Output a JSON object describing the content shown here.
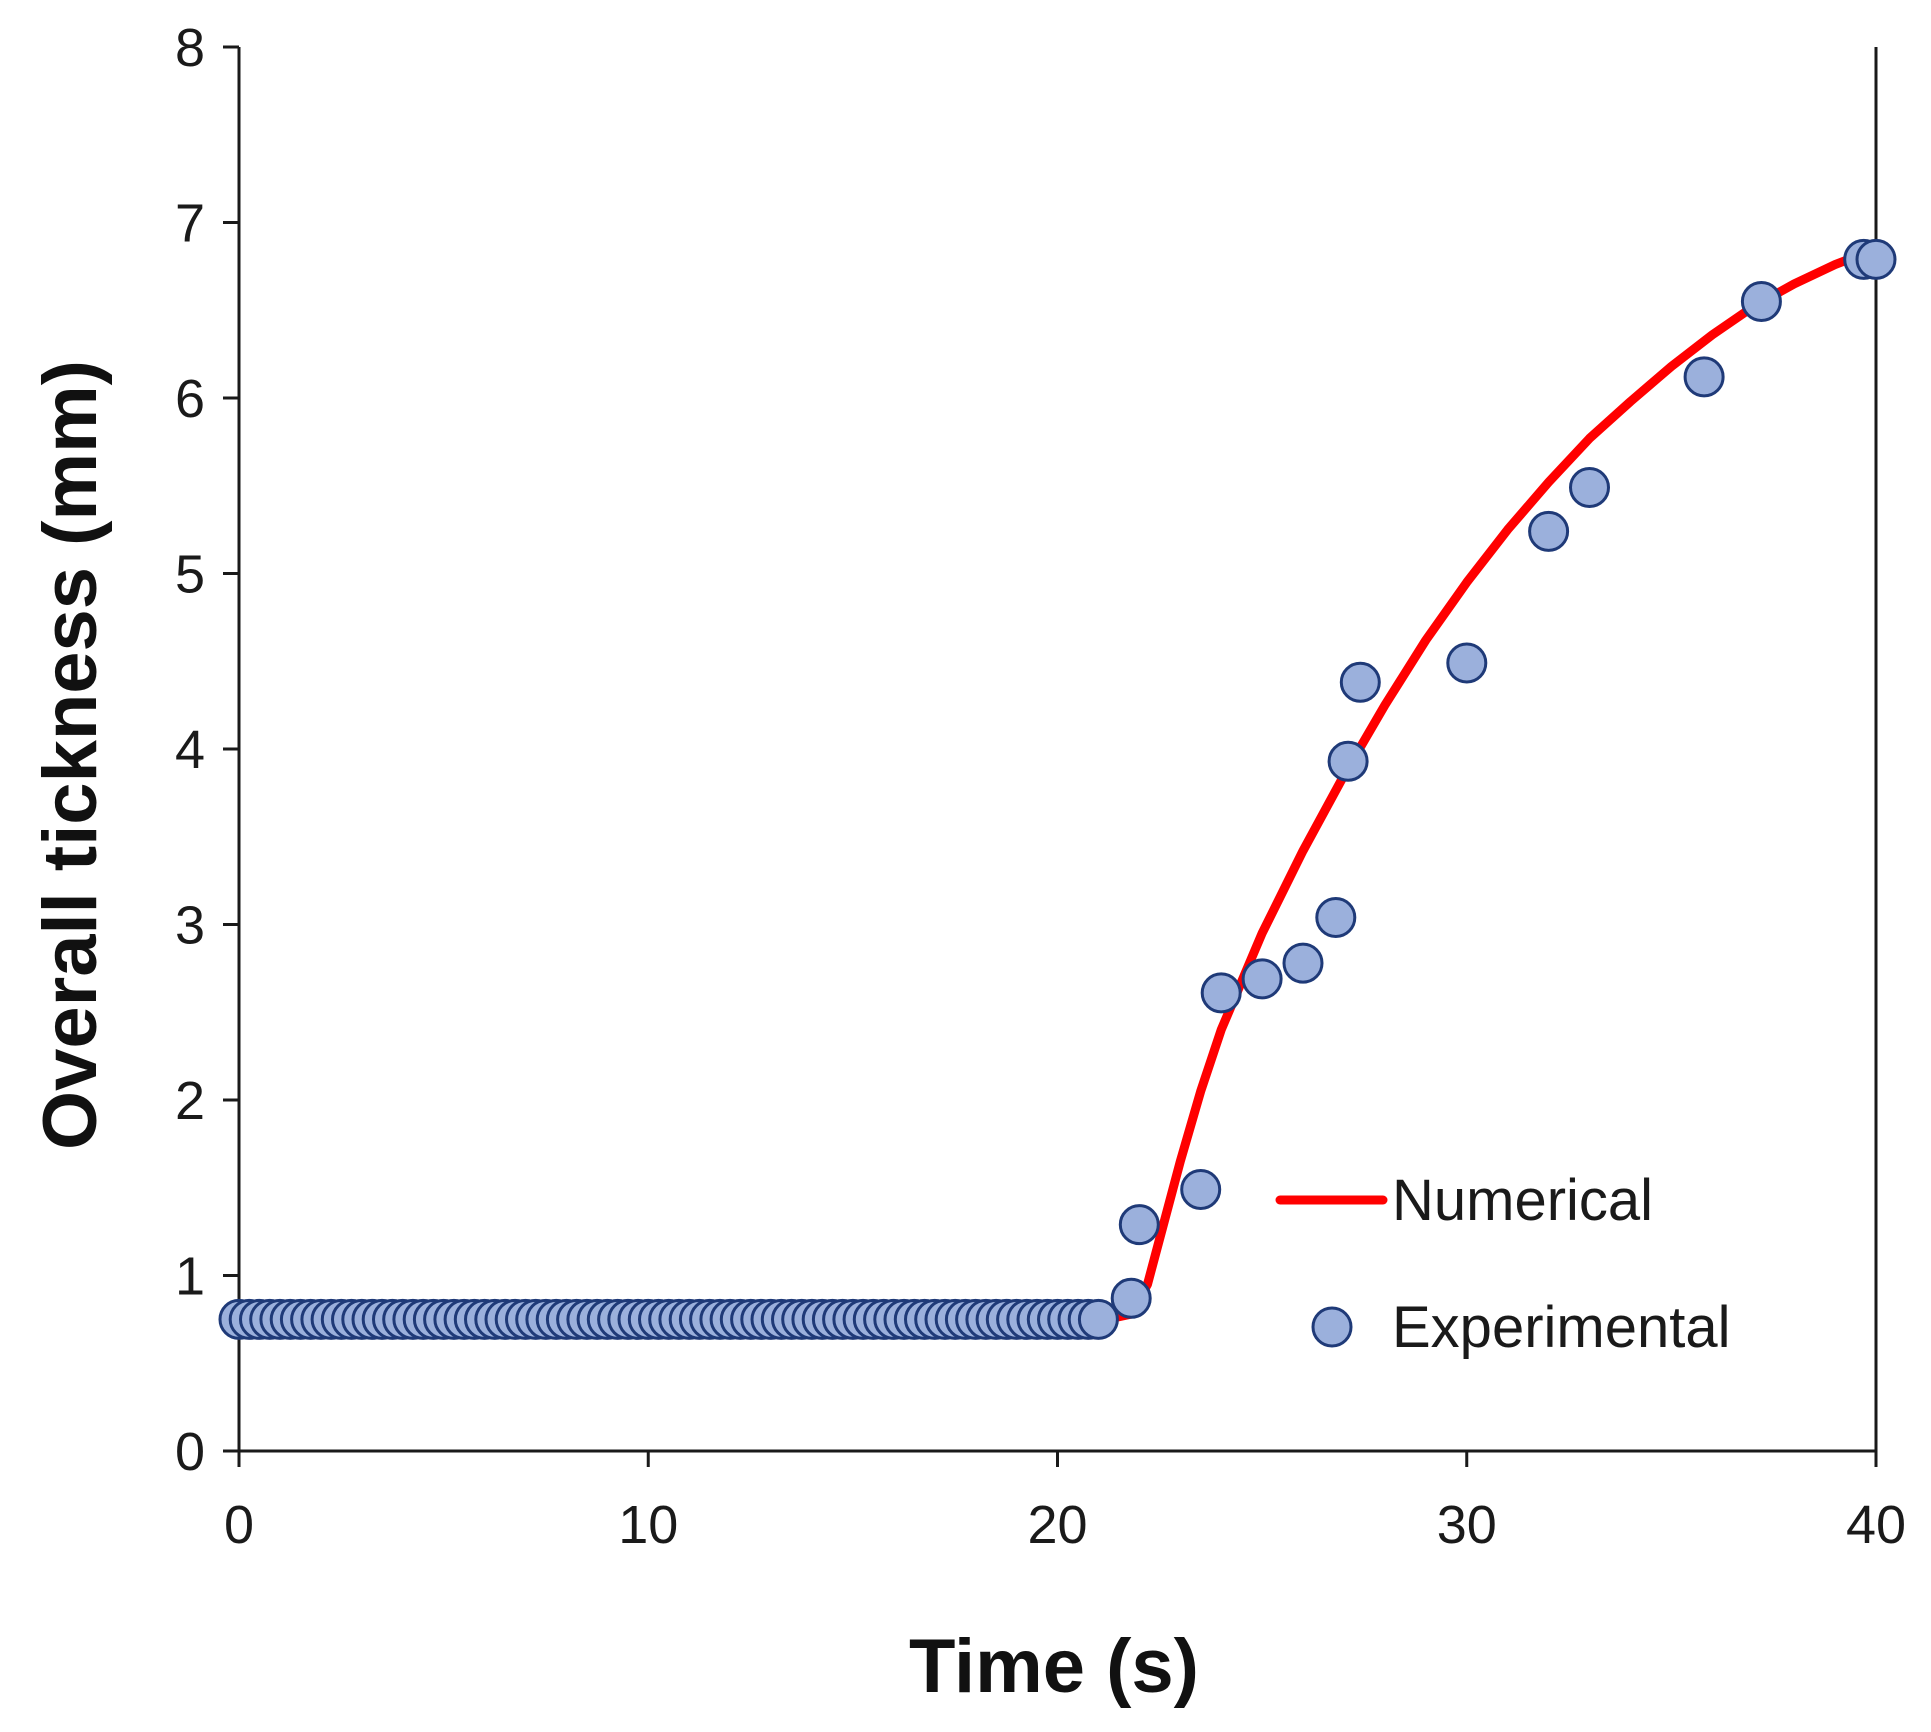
{
  "chart_data": {
    "type": "scatter",
    "title": "",
    "xlabel": "Time (s)",
    "ylabel": "Overall tickness (mm)",
    "xlim": [
      0,
      40
    ],
    "ylim": [
      0,
      8
    ],
    "xticks": [
      0,
      10,
      20,
      30,
      40
    ],
    "yticks": [
      0,
      1,
      2,
      3,
      4,
      5,
      6,
      7,
      8
    ],
    "grid": false,
    "legend_position": "bottom-right",
    "colors": {
      "numerical_line": "#ff0000",
      "marker_fill": "#9bb0dc",
      "marker_edge": "#1f3a78",
      "axis": "#1a1a1a"
    },
    "series": [
      {
        "name": "Numerical",
        "kind": "line",
        "x": [
          21.2,
          21.8,
          22.2,
          22.6,
          23.0,
          23.5,
          24.0,
          25.0,
          26.0,
          27.0,
          28.0,
          29.0,
          30.0,
          31.0,
          32.0,
          33.0,
          34.0,
          35.0,
          36.0,
          37.0,
          38.0,
          39.0,
          40.0
        ],
        "y": [
          0.75,
          0.78,
          0.95,
          1.3,
          1.65,
          2.05,
          2.4,
          2.95,
          3.42,
          3.85,
          4.25,
          4.62,
          4.95,
          5.25,
          5.52,
          5.77,
          5.98,
          6.18,
          6.36,
          6.52,
          6.65,
          6.76,
          6.85
        ]
      },
      {
        "name": "Experimental",
        "kind": "scatter",
        "x": [
          0.0,
          0.25,
          0.5,
          0.75,
          1.0,
          1.25,
          1.5,
          1.75,
          2.0,
          2.25,
          2.5,
          2.75,
          3.0,
          3.25,
          3.5,
          3.75,
          4.0,
          4.25,
          4.5,
          4.75,
          5.0,
          5.25,
          5.5,
          5.75,
          6.0,
          6.25,
          6.5,
          6.75,
          7.0,
          7.25,
          7.5,
          7.75,
          8.0,
          8.25,
          8.5,
          8.75,
          9.0,
          9.25,
          9.5,
          9.75,
          10.0,
          10.25,
          10.5,
          10.75,
          11.0,
          11.25,
          11.5,
          11.75,
          12.0,
          12.25,
          12.5,
          12.75,
          13.0,
          13.25,
          13.5,
          13.75,
          14.0,
          14.25,
          14.5,
          14.75,
          15.0,
          15.25,
          15.5,
          15.75,
          16.0,
          16.25,
          16.5,
          16.75,
          17.0,
          17.25,
          17.5,
          17.75,
          18.0,
          18.25,
          18.5,
          18.75,
          19.0,
          19.25,
          19.5,
          19.75,
          20.0,
          20.25,
          20.5,
          20.75,
          21.0,
          21.8,
          22.0,
          23.5,
          24.0,
          25.0,
          26.0,
          26.8,
          27.1,
          27.4,
          30.0,
          32.0,
          33.0,
          35.8,
          37.2,
          39.7,
          40.0
        ],
        "y": [
          0.75,
          0.75,
          0.75,
          0.75,
          0.75,
          0.75,
          0.75,
          0.75,
          0.75,
          0.75,
          0.75,
          0.75,
          0.75,
          0.75,
          0.75,
          0.75,
          0.75,
          0.75,
          0.75,
          0.75,
          0.75,
          0.75,
          0.75,
          0.75,
          0.75,
          0.75,
          0.75,
          0.75,
          0.75,
          0.75,
          0.75,
          0.75,
          0.75,
          0.75,
          0.75,
          0.75,
          0.75,
          0.75,
          0.75,
          0.75,
          0.75,
          0.75,
          0.75,
          0.75,
          0.75,
          0.75,
          0.75,
          0.75,
          0.75,
          0.75,
          0.75,
          0.75,
          0.75,
          0.75,
          0.75,
          0.75,
          0.75,
          0.75,
          0.75,
          0.75,
          0.75,
          0.75,
          0.75,
          0.75,
          0.75,
          0.75,
          0.75,
          0.75,
          0.75,
          0.75,
          0.75,
          0.75,
          0.75,
          0.75,
          0.75,
          0.75,
          0.75,
          0.75,
          0.75,
          0.75,
          0.75,
          0.75,
          0.75,
          0.75,
          0.75,
          0.87,
          1.29,
          1.49,
          2.61,
          2.69,
          2.78,
          3.04,
          3.93,
          4.38,
          4.49,
          5.24,
          5.49,
          6.12,
          6.55,
          6.79,
          6.79
        ]
      }
    ]
  }
}
